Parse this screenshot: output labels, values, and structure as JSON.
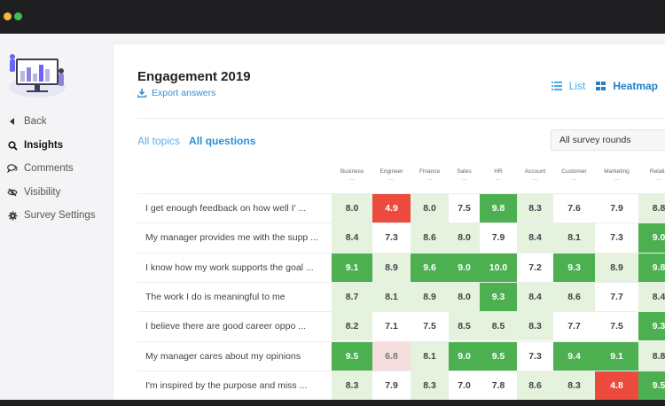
{
  "sidebar": {
    "items": [
      {
        "label": "Back",
        "icon": "caret-left-icon",
        "active": false
      },
      {
        "label": "Insights",
        "icon": "search-icon",
        "active": true
      },
      {
        "label": "Comments",
        "icon": "comments-icon",
        "active": false
      },
      {
        "label": "Visibility",
        "icon": "eye-slash-icon",
        "active": false
      },
      {
        "label": "Survey Settings",
        "icon": "gear-icon",
        "active": false
      }
    ]
  },
  "main": {
    "title": "Engagement 2019",
    "export_label": "Export answers",
    "view": {
      "list_label": "List",
      "heatmap_label": "Heatmap",
      "selected": "Heatmap"
    },
    "tabs": {
      "all_topics": "All topics",
      "all_questions": "All questions",
      "selected": "All questions"
    },
    "rounds_select": "All survey rounds"
  },
  "heatmap": {
    "columns": [
      "Business",
      "Engineer",
      "Finance",
      "Sales",
      "HR",
      "Account",
      "Customer",
      "Marketing",
      "Relatio"
    ],
    "rows": [
      {
        "question": "I get enough feedback on how well I' ...",
        "values": [
          "8.0",
          "4.9",
          "8.0",
          "7.5",
          "9.8",
          "8.3",
          "7.6",
          "7.9",
          "8.8"
        ]
      },
      {
        "question": "My manager provides me with the supp ...",
        "values": [
          "8.4",
          "7.3",
          "8.6",
          "8.0",
          "7.9",
          "8.4",
          "8.1",
          "7.3",
          "9.0"
        ]
      },
      {
        "question": "I know how my work supports the goal ...",
        "values": [
          "9.1",
          "8.9",
          "9.6",
          "9.0",
          "10.0",
          "7.2",
          "9.3",
          "8.9",
          "9.8"
        ]
      },
      {
        "question": "The work I do is meaningful to me",
        "values": [
          "8.7",
          "8.1",
          "8.9",
          "8.0",
          "9.3",
          "8.4",
          "8.6",
          "7.7",
          "8.4"
        ]
      },
      {
        "question": "I believe there are good career oppo ...",
        "values": [
          "8.2",
          "7.1",
          "7.5",
          "8.5",
          "8.5",
          "8.3",
          "7.7",
          "7.5",
          "9.3"
        ]
      },
      {
        "question": "My manager cares about my opinions",
        "values": [
          "9.5",
          "6.8",
          "8.1",
          "9.0",
          "9.5",
          "7.3",
          "9.4",
          "9.1",
          "8.8"
        ]
      },
      {
        "question": "I'm inspired by the purpose and miss ...",
        "values": [
          "8.3",
          "7.9",
          "8.3",
          "7.0",
          "7.8",
          "8.6",
          "8.3",
          "4.8",
          "9.5"
        ]
      }
    ]
  },
  "colors": {
    "dark_green": "#4caf50",
    "light_green": "#e4f2de",
    "white": "#ffffff",
    "pale_red": "#f6dede",
    "red": "#ec4a3c",
    "accent_blue": "#2b8fd8"
  }
}
